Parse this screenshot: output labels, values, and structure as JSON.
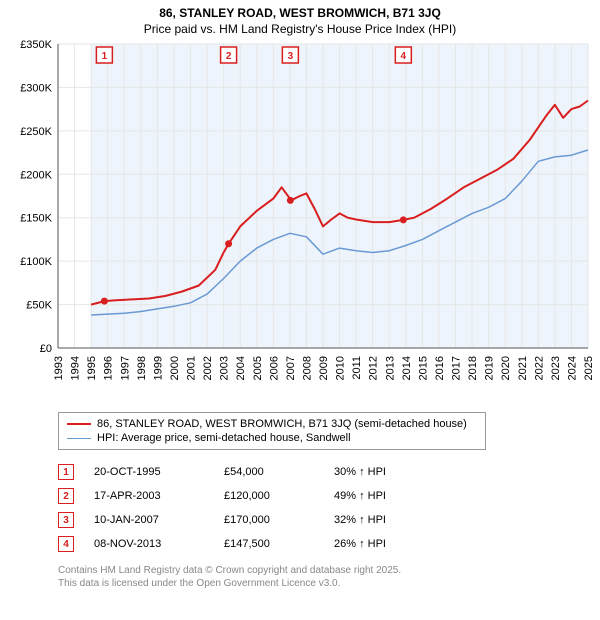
{
  "title_line1": "86, STANLEY ROAD, WEST BROMWICH, B71 3JQ",
  "title_line2": "Price paid vs. HM Land Registry's House Price Index (HPI)",
  "chart": {
    "type": "line",
    "background_color": "#ffffff",
    "shade_color": "#eef4fb",
    "grid_color": "#e6e6e6",
    "axis_color": "#555555",
    "tick_font_size": 11,
    "x_years": [
      1993,
      1994,
      1995,
      1996,
      1997,
      1998,
      1999,
      2000,
      2001,
      2002,
      2003,
      2004,
      2005,
      2006,
      2007,
      2008,
      2009,
      2010,
      2011,
      2012,
      2013,
      2014,
      2015,
      2016,
      2017,
      2018,
      2019,
      2020,
      2021,
      2022,
      2023,
      2024,
      2025
    ],
    "y_ticks": [
      0,
      50000,
      100000,
      150000,
      200000,
      250000,
      300000,
      350000
    ],
    "y_tick_labels": [
      "£0",
      "£50K",
      "£100K",
      "£150K",
      "£200K",
      "£250K",
      "£300K",
      "£350K"
    ],
    "ylim": [
      0,
      350000
    ],
    "xlim": [
      1993,
      2025
    ],
    "series": [
      {
        "name": "86, STANLEY ROAD, WEST BROMWICH, B71 3JQ (semi-detached house)",
        "color": "#d81e1e",
        "line_width": 2,
        "data": [
          [
            1995.0,
            50000
          ],
          [
            1995.8,
            54000
          ],
          [
            1996.5,
            55000
          ],
          [
            1997.5,
            56000
          ],
          [
            1998.5,
            57000
          ],
          [
            1999.5,
            60000
          ],
          [
            2000.5,
            65000
          ],
          [
            2001.5,
            72000
          ],
          [
            2002.5,
            90000
          ],
          [
            2003.0,
            110000
          ],
          [
            2003.3,
            120000
          ],
          [
            2004.0,
            140000
          ],
          [
            2005.0,
            158000
          ],
          [
            2006.0,
            172000
          ],
          [
            2006.5,
            185000
          ],
          [
            2007.08,
            170000
          ],
          [
            2007.6,
            175000
          ],
          [
            2008.0,
            178000
          ],
          [
            2008.5,
            160000
          ],
          [
            2009.0,
            140000
          ],
          [
            2009.5,
            148000
          ],
          [
            2010.0,
            155000
          ],
          [
            2010.5,
            150000
          ],
          [
            2011.0,
            148000
          ],
          [
            2012.0,
            145000
          ],
          [
            2013.0,
            145000
          ],
          [
            2013.85,
            147500
          ],
          [
            2014.5,
            150000
          ],
          [
            2015.5,
            160000
          ],
          [
            2016.5,
            172000
          ],
          [
            2017.5,
            185000
          ],
          [
            2018.5,
            195000
          ],
          [
            2019.5,
            205000
          ],
          [
            2020.5,
            218000
          ],
          [
            2021.5,
            240000
          ],
          [
            2022.5,
            268000
          ],
          [
            2023.0,
            280000
          ],
          [
            2023.5,
            265000
          ],
          [
            2024.0,
            275000
          ],
          [
            2024.5,
            278000
          ],
          [
            2025.0,
            285000
          ]
        ]
      },
      {
        "name": "HPI: Average price, semi-detached house, Sandwell",
        "color": "#6a9ad4",
        "line_width": 1.5,
        "data": [
          [
            1995.0,
            38000
          ],
          [
            1996.0,
            39000
          ],
          [
            1997.0,
            40000
          ],
          [
            1998.0,
            42000
          ],
          [
            1999.0,
            45000
          ],
          [
            2000.0,
            48000
          ],
          [
            2001.0,
            52000
          ],
          [
            2002.0,
            62000
          ],
          [
            2003.0,
            80000
          ],
          [
            2004.0,
            100000
          ],
          [
            2005.0,
            115000
          ],
          [
            2006.0,
            125000
          ],
          [
            2007.0,
            132000
          ],
          [
            2008.0,
            128000
          ],
          [
            2009.0,
            108000
          ],
          [
            2010.0,
            115000
          ],
          [
            2011.0,
            112000
          ],
          [
            2012.0,
            110000
          ],
          [
            2013.0,
            112000
          ],
          [
            2014.0,
            118000
          ],
          [
            2015.0,
            125000
          ],
          [
            2016.0,
            135000
          ],
          [
            2017.0,
            145000
          ],
          [
            2018.0,
            155000
          ],
          [
            2019.0,
            162000
          ],
          [
            2020.0,
            172000
          ],
          [
            2021.0,
            192000
          ],
          [
            2022.0,
            215000
          ],
          [
            2023.0,
            220000
          ],
          [
            2024.0,
            222000
          ],
          [
            2025.0,
            228000
          ]
        ]
      }
    ],
    "sale_markers": [
      {
        "num": "1",
        "year": 1995.8,
        "price": 54000
      },
      {
        "num": "2",
        "year": 2003.3,
        "price": 120000
      },
      {
        "num": "3",
        "year": 2007.03,
        "price": 170000
      },
      {
        "num": "4",
        "year": 2013.85,
        "price": 147500
      }
    ],
    "shade_start_year": 1995.0
  },
  "legend": {
    "items": [
      {
        "color": "#d81e1e",
        "label": "86, STANLEY ROAD, WEST BROMWICH, B71 3JQ (semi-detached house)",
        "width": 2
      },
      {
        "color": "#6a9ad4",
        "label": "HPI: Average price, semi-detached house, Sandwell",
        "width": 1.5
      }
    ]
  },
  "marker_table": [
    {
      "num": "1",
      "date": "20-OCT-1995",
      "price": "£54,000",
      "delta": "30% ↑ HPI"
    },
    {
      "num": "2",
      "date": "17-APR-2003",
      "price": "£120,000",
      "delta": "49% ↑ HPI"
    },
    {
      "num": "3",
      "date": "10-JAN-2007",
      "price": "£170,000",
      "delta": "32% ↑ HPI"
    },
    {
      "num": "4",
      "date": "08-NOV-2013",
      "price": "£147,500",
      "delta": "26% ↑ HPI"
    }
  ],
  "footer_line1": "Contains HM Land Registry data © Crown copyright and database right 2025.",
  "footer_line2": "This data is licensed under the Open Government Licence v3.0."
}
